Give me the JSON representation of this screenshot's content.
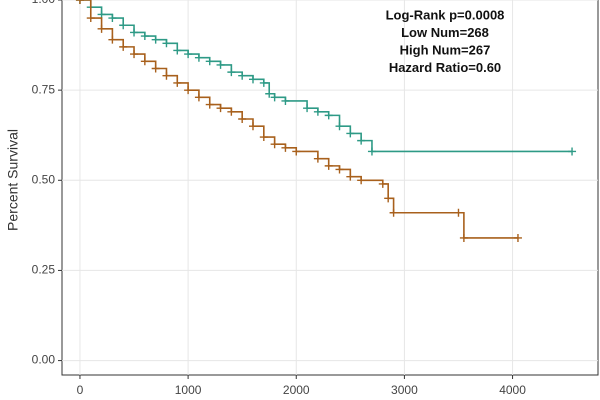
{
  "chart_data": {
    "type": "survival",
    "y_label": "Percent Survival",
    "annotations": [
      "Log-Rank p=0.0008",
      "Low Num=268",
      "High Num=267",
      "Hazard Ratio=0.60"
    ],
    "xlim": [
      -166,
      4790
    ],
    "ylim": [
      -0.04,
      1.0
    ],
    "xticks": [
      0,
      1000,
      2000,
      3000,
      4000
    ],
    "yticks": [
      {
        "value": 0,
        "label": "0.00"
      },
      {
        "value": 0.25,
        "label": "0.25"
      },
      {
        "value": 0.5,
        "label": "0.50"
      },
      {
        "value": 0.75,
        "label": "0.75"
      },
      {
        "value": 1,
        "label": "1.00"
      }
    ],
    "grid": true,
    "series": [
      {
        "color": "#2e9a86",
        "x": [
          0,
          100,
          200,
          300,
          400,
          500,
          600,
          700,
          800,
          900,
          1000,
          1100,
          1200,
          1300,
          1400,
          1500,
          1600,
          1700,
          1750,
          1800,
          1900,
          2100,
          2200,
          2300,
          2400,
          2500,
          2600,
          2700,
          4550
        ],
        "values": [
          1.0,
          0.98,
          0.96,
          0.95,
          0.93,
          0.91,
          0.9,
          0.89,
          0.88,
          0.86,
          0.85,
          0.84,
          0.83,
          0.82,
          0.8,
          0.79,
          0.78,
          0.77,
          0.74,
          0.73,
          0.72,
          0.7,
          0.69,
          0.68,
          0.65,
          0.63,
          0.61,
          0.58,
          0.58
        ]
      },
      {
        "color": "#a8601c",
        "x": [
          0,
          100,
          200,
          300,
          400,
          500,
          600,
          700,
          800,
          900,
          1000,
          1100,
          1200,
          1300,
          1400,
          1500,
          1600,
          1700,
          1800,
          1900,
          2000,
          2200,
          2300,
          2400,
          2500,
          2600,
          2800,
          2850,
          2900,
          3500,
          3550,
          4050
        ],
        "values": [
          1.0,
          0.95,
          0.92,
          0.89,
          0.87,
          0.85,
          0.83,
          0.81,
          0.79,
          0.77,
          0.75,
          0.73,
          0.71,
          0.7,
          0.69,
          0.67,
          0.65,
          0.62,
          0.6,
          0.59,
          0.58,
          0.56,
          0.54,
          0.53,
          0.51,
          0.5,
          0.49,
          0.45,
          0.41,
          0.41,
          0.34,
          0.34
        ]
      }
    ]
  }
}
